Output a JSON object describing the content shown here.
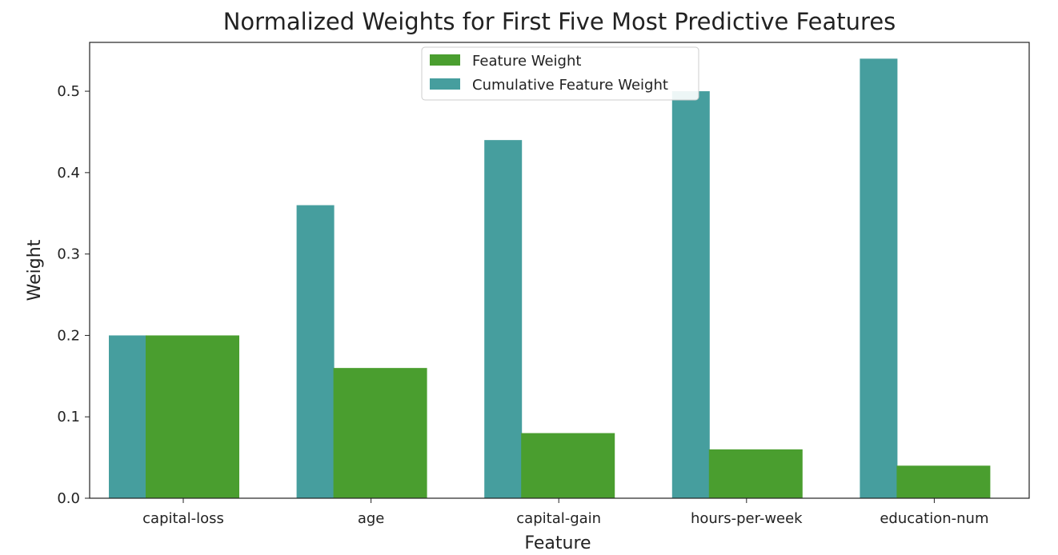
{
  "chart_data": {
    "type": "bar",
    "title": "Normalized Weights for First Five Most Predictive Features",
    "xlabel": "Feature",
    "ylabel": "Weight",
    "categories": [
      "capital-loss",
      "age",
      "capital-gain",
      "hours-per-week",
      "education-num"
    ],
    "ylim": [
      0,
      0.56
    ],
    "yticks": [
      0.0,
      0.1,
      0.2,
      0.3,
      0.4,
      0.5
    ],
    "ytick_labels": [
      "0.0",
      "0.1",
      "0.2",
      "0.3",
      "0.4",
      "0.5"
    ],
    "series": [
      {
        "name": "Feature Weight",
        "color": "#4a9e2f",
        "values": [
          0.2,
          0.16,
          0.08,
          0.06,
          0.04
        ]
      },
      {
        "name": "Cumulative Feature Weight",
        "color": "#469e9e",
        "values": [
          0.2,
          0.36,
          0.44,
          0.5,
          0.54
        ]
      }
    ],
    "grid": false,
    "legend_position": "top-center"
  }
}
